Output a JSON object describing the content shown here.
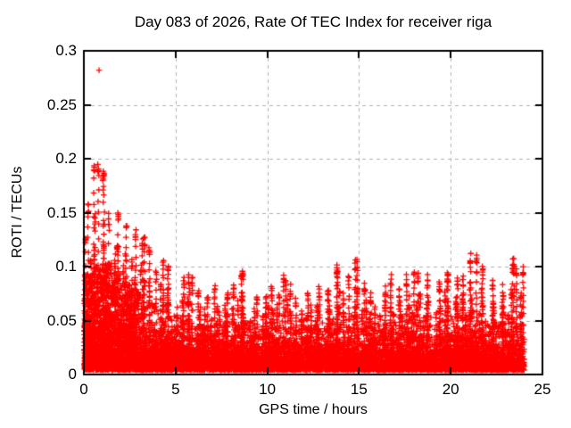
{
  "figure": {
    "bg_color": "#ffffff",
    "axis_color": "#000000"
  },
  "chart_data": {
    "type": "scatter",
    "title": "Day 083 of 2026, Rate Of TEC Index for receiver riga",
    "xlabel": "GPS time / hours",
    "ylabel": "ROTI / TECUs",
    "xlim": [
      0,
      25
    ],
    "ylim": [
      0,
      0.3
    ],
    "xticks": [
      0,
      5,
      10,
      15,
      20,
      25
    ],
    "yticks": [
      0,
      0.05,
      0.1,
      0.15,
      0.2,
      0.25,
      0.3
    ],
    "xtick_labels": [
      "0",
      "5",
      "10",
      "15",
      "20",
      "25"
    ],
    "ytick_labels": [
      "0",
      "0.05",
      "0.1",
      "0.15",
      "0.2",
      "0.25",
      "0.3"
    ],
    "grid": {
      "on": true,
      "style": "dashed",
      "color": "#b0b0b0"
    },
    "marker": {
      "shape": "plus",
      "color": "#ff0000",
      "size": 7
    },
    "x_data_range": [
      0,
      24.1
    ],
    "bin_width_hours": 0.5,
    "bin_max": [
      0.158,
      0.195,
      0.19,
      0.15,
      0.14,
      0.132,
      0.128,
      0.118,
      0.108,
      0.1,
      0.088,
      0.092,
      0.078,
      0.072,
      0.08,
      0.075,
      0.082,
      0.096,
      0.072,
      0.073,
      0.08,
      0.092,
      0.082,
      0.072,
      0.076,
      0.08,
      0.08,
      0.1,
      0.092,
      0.105,
      0.085,
      0.076,
      0.08,
      0.09,
      0.08,
      0.09,
      0.095,
      0.09,
      0.085,
      0.095,
      0.09,
      0.09,
      0.112,
      0.1,
      0.086,
      0.08,
      0.105,
      0.1
    ],
    "bin_dense": [
      0.095,
      0.1,
      0.105,
      0.095,
      0.085,
      0.08,
      0.078,
      0.072,
      0.065,
      0.06,
      0.052,
      0.05,
      0.046,
      0.045,
      0.048,
      0.048,
      0.05,
      0.05,
      0.045,
      0.046,
      0.05,
      0.054,
      0.05,
      0.046,
      0.048,
      0.05,
      0.05,
      0.055,
      0.052,
      0.055,
      0.05,
      0.046,
      0.048,
      0.05,
      0.048,
      0.05,
      0.054,
      0.054,
      0.05,
      0.052,
      0.054,
      0.055,
      0.058,
      0.058,
      0.05,
      0.048,
      0.05,
      0.055
    ],
    "spike_features": [
      {
        "t": 0.55,
        "h": 0.193
      },
      {
        "t": 1.1,
        "h": 0.188
      },
      {
        "t": 3.2,
        "h": 0.125
      },
      {
        "t": 5.9,
        "h": 0.09
      },
      {
        "t": 8.6,
        "h": 0.095
      },
      {
        "t": 11.0,
        "h": 0.09
      },
      {
        "t": 13.8,
        "h": 0.1
      },
      {
        "t": 14.9,
        "h": 0.105
      },
      {
        "t": 18.0,
        "h": 0.094
      },
      {
        "t": 19.85,
        "h": 0.094
      },
      {
        "t": 21.4,
        "h": 0.112
      },
      {
        "t": 23.45,
        "h": 0.105
      },
      {
        "t": 23.95,
        "h": 0.098
      }
    ],
    "outliers": [
      {
        "x": 0.83,
        "y": 0.282
      }
    ],
    "gen": {
      "seed": 20260083,
      "base_per_bin": 120,
      "mid_per_bin": 50,
      "spike_points": 14
    }
  }
}
